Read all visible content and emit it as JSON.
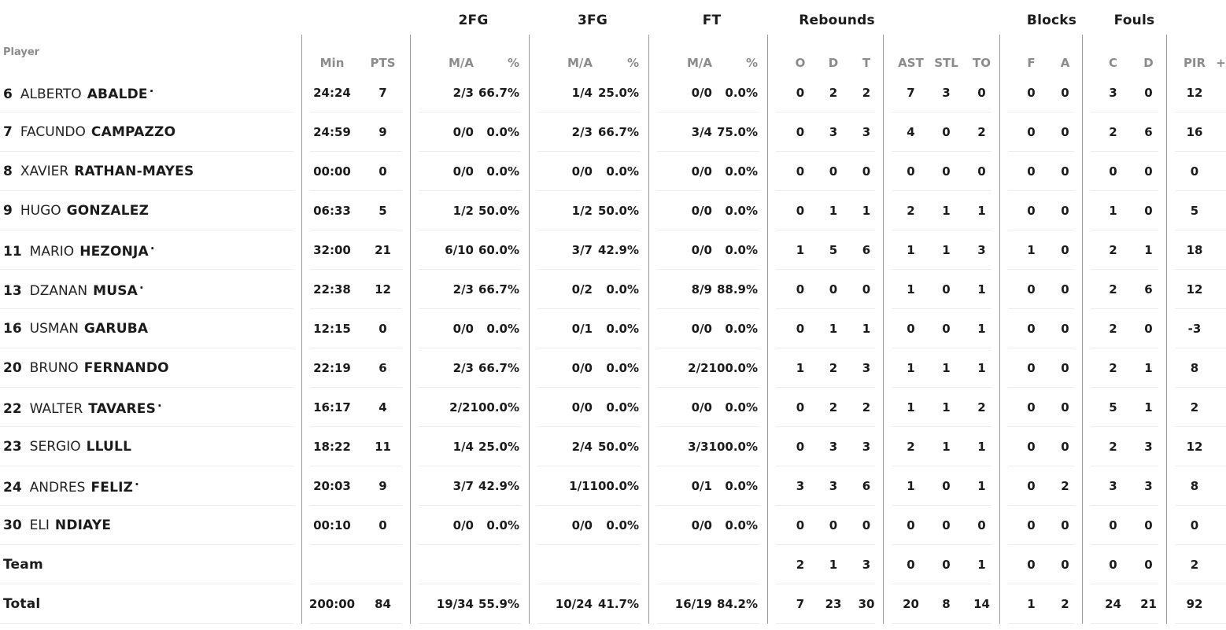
{
  "colors": {
    "text": "#1b1b1b",
    "muted_header": "#8b8b8b",
    "group_divider": "#9a9a9a",
    "row_line": "#ededed",
    "background": "#ffffff"
  },
  "table": {
    "groups": {
      "fg2": "2FG",
      "fg3": "3FG",
      "ft": "FT",
      "rebounds": "Rebounds",
      "blocks": "Blocks",
      "fouls": "Fouls"
    },
    "columns": {
      "player": "Player",
      "min": "Min",
      "pts": "PTS",
      "ma": "M/A",
      "pct": "%",
      "reb_o": "O",
      "reb_d": "D",
      "reb_t": "T",
      "ast": "AST",
      "stl": "STL",
      "to": "TO",
      "blk_f": "F",
      "blk_a": "A",
      "foul_c": "C",
      "foul_d": "D",
      "pir": "PIR",
      "plus": "+"
    },
    "starter_mark": "·",
    "rows": [
      {
        "num": "6",
        "first": "ALBERTO",
        "last": "ABALDE",
        "mark": "·",
        "min": "24:24",
        "pts": "7",
        "fg2ma": "2/3",
        "fg2pct": "66.7%",
        "fg3ma": "1/4",
        "fg3pct": "25.0%",
        "ftma": "0/0",
        "ftpct": "0.0%",
        "ro": "0",
        "rd": "2",
        "rt": "2",
        "ast": "7",
        "stl": "3",
        "to": "0",
        "bf": "0",
        "ba": "0",
        "fc": "3",
        "fd": "0",
        "pir": "12",
        "plus": ""
      },
      {
        "num": "7",
        "first": "FACUNDO",
        "last": "CAMPAZZO",
        "mark": "",
        "min": "24:59",
        "pts": "9",
        "fg2ma": "0/0",
        "fg2pct": "0.0%",
        "fg3ma": "2/3",
        "fg3pct": "66.7%",
        "ftma": "3/4",
        "ftpct": "75.0%",
        "ro": "0",
        "rd": "3",
        "rt": "3",
        "ast": "4",
        "stl": "0",
        "to": "2",
        "bf": "0",
        "ba": "0",
        "fc": "2",
        "fd": "6",
        "pir": "16",
        "plus": ""
      },
      {
        "num": "8",
        "first": "XAVIER",
        "last": "RATHAN-MAYES",
        "mark": "",
        "min": "00:00",
        "pts": "0",
        "fg2ma": "0/0",
        "fg2pct": "0.0%",
        "fg3ma": "0/0",
        "fg3pct": "0.0%",
        "ftma": "0/0",
        "ftpct": "0.0%",
        "ro": "0",
        "rd": "0",
        "rt": "0",
        "ast": "0",
        "stl": "0",
        "to": "0",
        "bf": "0",
        "ba": "0",
        "fc": "0",
        "fd": "0",
        "pir": "0",
        "plus": ""
      },
      {
        "num": "9",
        "first": "HUGO",
        "last": "GONZALEZ",
        "mark": "",
        "min": "06:33",
        "pts": "5",
        "fg2ma": "1/2",
        "fg2pct": "50.0%",
        "fg3ma": "1/2",
        "fg3pct": "50.0%",
        "ftma": "0/0",
        "ftpct": "0.0%",
        "ro": "0",
        "rd": "1",
        "rt": "1",
        "ast": "2",
        "stl": "1",
        "to": "1",
        "bf": "0",
        "ba": "0",
        "fc": "1",
        "fd": "0",
        "pir": "5",
        "plus": ""
      },
      {
        "num": "11",
        "first": "MARIO",
        "last": "HEZONJA",
        "mark": "·",
        "min": "32:00",
        "pts": "21",
        "fg2ma": "6/10",
        "fg2pct": "60.0%",
        "fg3ma": "3/7",
        "fg3pct": "42.9%",
        "ftma": "0/0",
        "ftpct": "0.0%",
        "ro": "1",
        "rd": "5",
        "rt": "6",
        "ast": "1",
        "stl": "1",
        "to": "3",
        "bf": "1",
        "ba": "0",
        "fc": "2",
        "fd": "1",
        "pir": "18",
        "plus": ""
      },
      {
        "num": "13",
        "first": "DZANAN",
        "last": "MUSA",
        "mark": "·",
        "min": "22:38",
        "pts": "12",
        "fg2ma": "2/3",
        "fg2pct": "66.7%",
        "fg3ma": "0/2",
        "fg3pct": "0.0%",
        "ftma": "8/9",
        "ftpct": "88.9%",
        "ro": "0",
        "rd": "0",
        "rt": "0",
        "ast": "1",
        "stl": "0",
        "to": "1",
        "bf": "0",
        "ba": "0",
        "fc": "2",
        "fd": "6",
        "pir": "12",
        "plus": ""
      },
      {
        "num": "16",
        "first": "USMAN",
        "last": "GARUBA",
        "mark": "",
        "min": "12:15",
        "pts": "0",
        "fg2ma": "0/0",
        "fg2pct": "0.0%",
        "fg3ma": "0/1",
        "fg3pct": "0.0%",
        "ftma": "0/0",
        "ftpct": "0.0%",
        "ro": "0",
        "rd": "1",
        "rt": "1",
        "ast": "0",
        "stl": "0",
        "to": "1",
        "bf": "0",
        "ba": "0",
        "fc": "2",
        "fd": "0",
        "pir": "-3",
        "plus": ""
      },
      {
        "num": "20",
        "first": "BRUNO",
        "last": "FERNANDO",
        "mark": "",
        "min": "22:19",
        "pts": "6",
        "fg2ma": "2/3",
        "fg2pct": "66.7%",
        "fg3ma": "0/0",
        "fg3pct": "0.0%",
        "ftma": "2/2",
        "ftpct": "100.0%",
        "ro": "1",
        "rd": "2",
        "rt": "3",
        "ast": "1",
        "stl": "1",
        "to": "1",
        "bf": "0",
        "ba": "0",
        "fc": "2",
        "fd": "1",
        "pir": "8",
        "plus": ""
      },
      {
        "num": "22",
        "first": "WALTER",
        "last": "TAVARES",
        "mark": "·",
        "min": "16:17",
        "pts": "4",
        "fg2ma": "2/2",
        "fg2pct": "100.0%",
        "fg3ma": "0/0",
        "fg3pct": "0.0%",
        "ftma": "0/0",
        "ftpct": "0.0%",
        "ro": "0",
        "rd": "2",
        "rt": "2",
        "ast": "1",
        "stl": "1",
        "to": "2",
        "bf": "0",
        "ba": "0",
        "fc": "5",
        "fd": "1",
        "pir": "2",
        "plus": ""
      },
      {
        "num": "23",
        "first": "SERGIO",
        "last": "LLULL",
        "mark": "",
        "min": "18:22",
        "pts": "11",
        "fg2ma": "1/4",
        "fg2pct": "25.0%",
        "fg3ma": "2/4",
        "fg3pct": "50.0%",
        "ftma": "3/3",
        "ftpct": "100.0%",
        "ro": "0",
        "rd": "3",
        "rt": "3",
        "ast": "2",
        "stl": "1",
        "to": "1",
        "bf": "0",
        "ba": "0",
        "fc": "2",
        "fd": "3",
        "pir": "12",
        "plus": ""
      },
      {
        "num": "24",
        "first": "ANDRES",
        "last": "FELIZ",
        "mark": "·",
        "min": "20:03",
        "pts": "9",
        "fg2ma": "3/7",
        "fg2pct": "42.9%",
        "fg3ma": "1/1",
        "fg3pct": "100.0%",
        "ftma": "0/1",
        "ftpct": "0.0%",
        "ro": "3",
        "rd": "3",
        "rt": "6",
        "ast": "1",
        "stl": "0",
        "to": "1",
        "bf": "0",
        "ba": "2",
        "fc": "3",
        "fd": "3",
        "pir": "8",
        "plus": ""
      },
      {
        "num": "30",
        "first": "ELI",
        "last": "NDIAYE",
        "mark": "",
        "min": "00:10",
        "pts": "0",
        "fg2ma": "0/0",
        "fg2pct": "0.0%",
        "fg3ma": "0/0",
        "fg3pct": "0.0%",
        "ftma": "0/0",
        "ftpct": "0.0%",
        "ro": "0",
        "rd": "0",
        "rt": "0",
        "ast": "0",
        "stl": "0",
        "to": "0",
        "bf": "0",
        "ba": "0",
        "fc": "0",
        "fd": "0",
        "pir": "0",
        "plus": ""
      },
      {
        "num": "",
        "first": "",
        "last": "Team",
        "mark": "",
        "min": "",
        "pts": "",
        "fg2ma": "",
        "fg2pct": "",
        "fg3ma": "",
        "fg3pct": "",
        "ftma": "",
        "ftpct": "",
        "ro": "2",
        "rd": "1",
        "rt": "3",
        "ast": "0",
        "stl": "0",
        "to": "1",
        "bf": "0",
        "ba": "0",
        "fc": "0",
        "fd": "0",
        "pir": "2",
        "plus": ""
      },
      {
        "num": "",
        "first": "",
        "last": "Total",
        "mark": "",
        "min": "200:00",
        "pts": "84",
        "fg2ma": "19/34",
        "fg2pct": "55.9%",
        "fg3ma": "10/24",
        "fg3pct": "41.7%",
        "ftma": "16/19",
        "ftpct": "84.2%",
        "ro": "7",
        "rd": "23",
        "rt": "30",
        "ast": "20",
        "stl": "8",
        "to": "14",
        "bf": "1",
        "ba": "2",
        "fc": "24",
        "fd": "21",
        "pir": "92",
        "plus": ""
      }
    ]
  }
}
